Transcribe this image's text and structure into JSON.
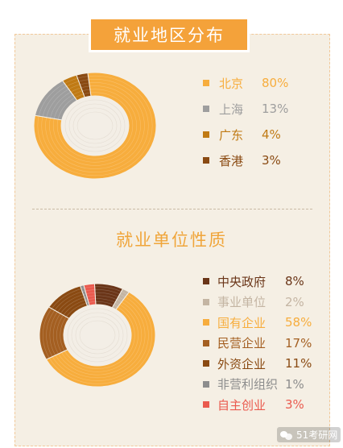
{
  "header": {
    "title": "就业地区分布"
  },
  "section2": {
    "title": "就业单位性质"
  },
  "watermark": {
    "label": "51考研网"
  },
  "chart_data": [
    {
      "type": "pie",
      "variant": "donut",
      "title": "就业地区分布",
      "legend_position": "right",
      "slices": [
        {
          "name": "北京",
          "value": 80,
          "label": "80%",
          "color": "#f7ad3d"
        },
        {
          "name": "上海",
          "value": 13,
          "label": "13%",
          "color": "#9e9e9e"
        },
        {
          "name": "广东",
          "value": 4,
          "label": "4%",
          "color": "#c07a14"
        },
        {
          "name": "香港",
          "value": 3,
          "label": "3%",
          "color": "#8a4a12"
        }
      ]
    },
    {
      "type": "pie",
      "variant": "donut",
      "title": "就业单位性质",
      "legend_position": "right",
      "slices": [
        {
          "name": "中央政府",
          "value": 8,
          "label": "8%",
          "color": "#6a3518"
        },
        {
          "name": "事业单位",
          "value": 2,
          "label": "2%",
          "color": "#c4b5a3"
        },
        {
          "name": "国有企业",
          "value": 58,
          "label": "58%",
          "color": "#f7ad3d"
        },
        {
          "name": "民营企业",
          "value": 17,
          "label": "17%",
          "color": "#a45f21"
        },
        {
          "name": "外资企业",
          "value": 11,
          "label": "11%",
          "color": "#8a4a12"
        },
        {
          "name": "非营利组织",
          "value": 1,
          "label": "1%",
          "color": "#8d8d8d"
        },
        {
          "name": "自主创业",
          "value": 3,
          "label": "3%",
          "color": "#ea5a4e"
        }
      ]
    }
  ]
}
